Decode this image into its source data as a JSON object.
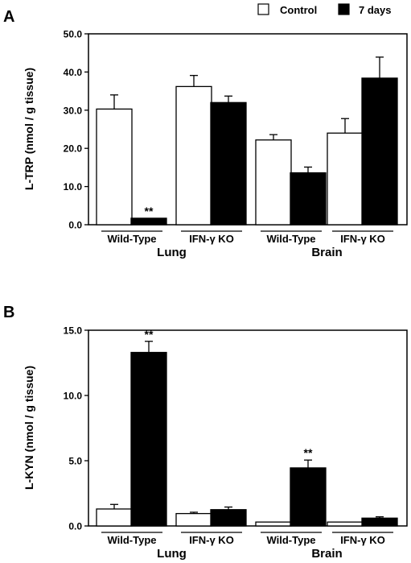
{
  "legend": [
    {
      "label": "Control",
      "color": "#ffffff"
    },
    {
      "label": "7 days",
      "color": "#000000"
    }
  ],
  "chart_data": [
    {
      "panel": "A",
      "type": "bar",
      "ylabel": "L-TRP (nmol / g tissue)",
      "ylim": [
        0,
        50
      ],
      "yticks": [
        "0.0",
        "10.0",
        "20.0",
        "30.0",
        "40.0",
        "50.0"
      ],
      "tissues": [
        "Lung",
        "Brain"
      ],
      "genotypes": [
        "Wild-Type",
        "IFN-γ KO"
      ],
      "groups": [
        {
          "tissue": "Lung",
          "genotype": "Wild-Type",
          "control": 30.3,
          "control_err": 3.7,
          "day7": 1.7,
          "day7_err": 0,
          "day7_mark": "**"
        },
        {
          "tissue": "Lung",
          "genotype": "IFN-γ KO",
          "control": 36.2,
          "control_err": 2.9,
          "day7": 32.0,
          "day7_err": 1.7
        },
        {
          "tissue": "Brain",
          "genotype": "Wild-Type",
          "control": 22.2,
          "control_err": 1.4,
          "day7": 13.6,
          "day7_err": 1.5
        },
        {
          "tissue": "Brain",
          "genotype": "IFN-γ KO",
          "control": 24.0,
          "control_err": 3.8,
          "day7": 38.4,
          "day7_err": 5.5
        }
      ]
    },
    {
      "panel": "B",
      "type": "bar",
      "ylabel": "L-KYN (nmol / g tissue)",
      "ylim": [
        0,
        15
      ],
      "yticks": [
        "0.0",
        "5.0",
        "10.0",
        "15.0"
      ],
      "tissues": [
        "Lung",
        "Brain"
      ],
      "genotypes": [
        "Wild-Type",
        "IFN-γ KO"
      ],
      "groups": [
        {
          "tissue": "Lung",
          "genotype": "Wild-Type",
          "control": 1.3,
          "control_err": 0.35,
          "day7": 13.3,
          "day7_err": 0.85,
          "day7_mark": "**"
        },
        {
          "tissue": "Lung",
          "genotype": "IFN-γ KO",
          "control": 0.95,
          "control_err": 0.1,
          "day7": 1.25,
          "day7_err": 0.2
        },
        {
          "tissue": "Brain",
          "genotype": "Wild-Type",
          "control": 0.3,
          "control_err": 0,
          "day7": 4.45,
          "day7_err": 0.6,
          "day7_mark": "**"
        },
        {
          "tissue": "Brain",
          "genotype": "IFN-γ KO",
          "control": 0.3,
          "control_err": 0,
          "day7": 0.6,
          "day7_err": 0.1
        }
      ]
    }
  ]
}
